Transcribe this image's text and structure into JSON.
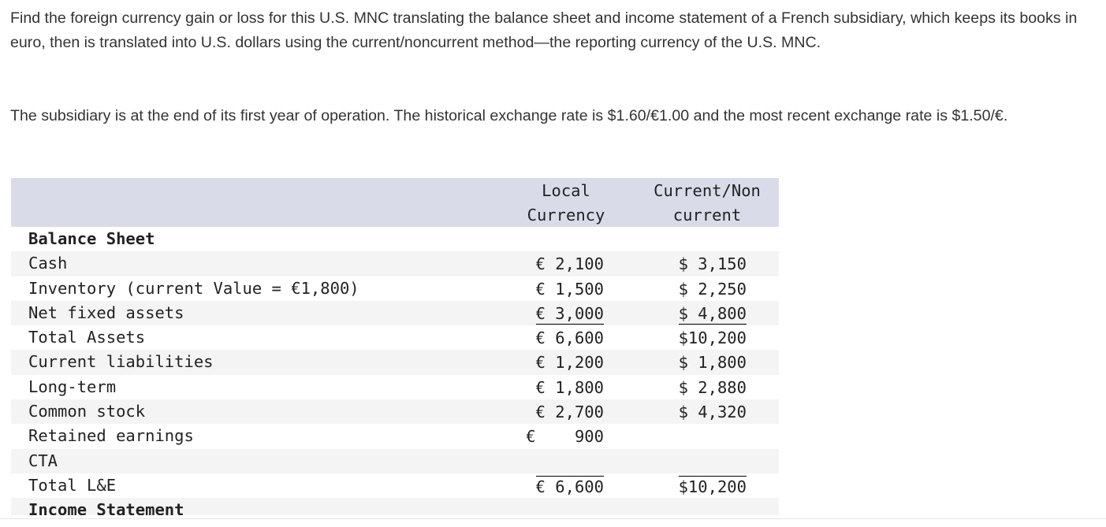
{
  "paragraphs": [
    "Find the foreign currency gain or loss for this U.S. MNC translating the balance sheet and income statement of a French subsidiary, which keeps its books in euro, then is translated into U.S. dollars using the current/noncurrent method—the reporting currency of the U.S. MNC.",
    "The subsidiary is at the end of its first year of operation. The historical exchange rate is $1.60/€1.00 and the most recent exchange rate is $1.50/€."
  ],
  "table": {
    "header": {
      "local": "Local Currency",
      "current": "Current/Non current"
    },
    "rows": [
      {
        "label": "Balance Sheet"
      },
      {
        "label": "Cash",
        "local": "€ 2,100",
        "current": "$ 3,150"
      },
      {
        "label": "Inventory (current Value = €1,800)",
        "local": "€ 1,500",
        "current": "$ 2,250"
      },
      {
        "label": "Net fixed assets",
        "local": "€ 3,000",
        "current": "$ 4,800"
      },
      {
        "label": "Total Assets",
        "local": "€ 6,600",
        "current": "$10,200"
      },
      {
        "label": "Current liabilities",
        "local": "€ 1,200",
        "current": "$ 1,800"
      },
      {
        "label": "Long-term",
        "local": "€ 1,800",
        "current": "$ 2,880"
      },
      {
        "label": "Common stock",
        "local": "€ 2,700",
        "current": "$ 4,320"
      },
      {
        "label": "Retained earnings",
        "local": "€    900"
      },
      {
        "label": "CTA"
      },
      {
        "label": "Total L&E",
        "local": "€ 6,600",
        "current": "$10,200"
      },
      {
        "label": "Income Statement"
      }
    ]
  }
}
